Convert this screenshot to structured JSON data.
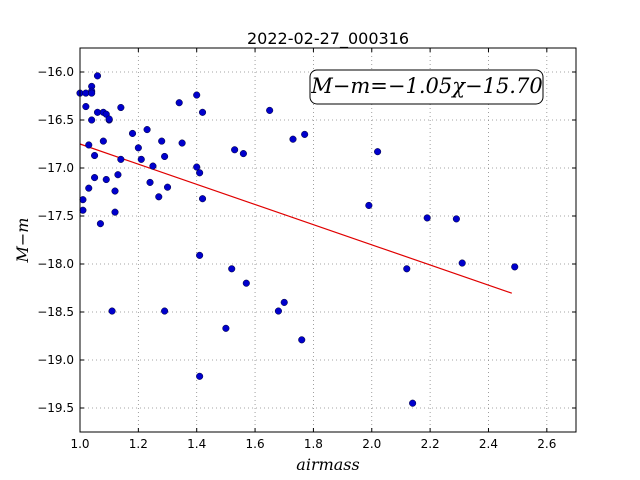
{
  "chart_data": {
    "type": "scatter",
    "title": "2022-02-27_000316",
    "xlabel": "airmass",
    "ylabel": "M−m",
    "xlim": [
      1.0,
      2.7
    ],
    "ylim": [
      -15.75,
      -19.75
    ],
    "y_inverted": true,
    "grid": true,
    "xticks": [
      "1.0",
      "1.2",
      "1.4",
      "1.6",
      "1.8",
      "2.0",
      "2.2",
      "2.4",
      "2.6"
    ],
    "yticks": [
      "−16.0",
      "−16.5",
      "−17.0",
      "−17.5",
      "−18.0",
      "−18.5",
      "−19.0",
      "−19.5"
    ],
    "annotation": "M−m=−1.05χ−15.70",
    "colors": {
      "points": "#0000cc",
      "fit": "#e00000",
      "grid": "#888888"
    },
    "fit": {
      "slope": -1.05,
      "intercept": -15.7,
      "x_range": [
        1.0,
        2.48
      ]
    },
    "points": [
      {
        "x": 1.0,
        "y": -16.22
      },
      {
        "x": 1.01,
        "y": -17.33
      },
      {
        "x": 1.01,
        "y": -17.44
      },
      {
        "x": 1.02,
        "y": -16.22
      },
      {
        "x": 1.02,
        "y": -16.36
      },
      {
        "x": 1.03,
        "y": -16.76
      },
      {
        "x": 1.03,
        "y": -17.21
      },
      {
        "x": 1.04,
        "y": -16.15
      },
      {
        "x": 1.04,
        "y": -16.2
      },
      {
        "x": 1.04,
        "y": -16.22
      },
      {
        "x": 1.04,
        "y": -16.5
      },
      {
        "x": 1.05,
        "y": -17.1
      },
      {
        "x": 1.05,
        "y": -16.87
      },
      {
        "x": 1.06,
        "y": -16.04
      },
      {
        "x": 1.06,
        "y": -16.42
      },
      {
        "x": 1.07,
        "y": -17.58
      },
      {
        "x": 1.08,
        "y": -16.42
      },
      {
        "x": 1.08,
        "y": -16.72
      },
      {
        "x": 1.09,
        "y": -16.44
      },
      {
        "x": 1.09,
        "y": -17.12
      },
      {
        "x": 1.1,
        "y": -16.5
      },
      {
        "x": 1.1,
        "y": -16.49
      },
      {
        "x": 1.11,
        "y": -18.49
      },
      {
        "x": 1.12,
        "y": -17.24
      },
      {
        "x": 1.12,
        "y": -17.46
      },
      {
        "x": 1.13,
        "y": -17.07
      },
      {
        "x": 1.14,
        "y": -16.91
      },
      {
        "x": 1.14,
        "y": -16.37
      },
      {
        "x": 1.18,
        "y": -16.64
      },
      {
        "x": 1.2,
        "y": -16.79
      },
      {
        "x": 1.21,
        "y": -16.91
      },
      {
        "x": 1.23,
        "y": -16.6
      },
      {
        "x": 1.24,
        "y": -17.15
      },
      {
        "x": 1.25,
        "y": -16.98
      },
      {
        "x": 1.27,
        "y": -17.3
      },
      {
        "x": 1.28,
        "y": -16.72
      },
      {
        "x": 1.29,
        "y": -18.49
      },
      {
        "x": 1.29,
        "y": -16.88
      },
      {
        "x": 1.3,
        "y": -17.2
      },
      {
        "x": 1.34,
        "y": -16.32
      },
      {
        "x": 1.35,
        "y": -16.74
      },
      {
        "x": 1.4,
        "y": -16.24
      },
      {
        "x": 1.4,
        "y": -16.99
      },
      {
        "x": 1.41,
        "y": -17.05
      },
      {
        "x": 1.41,
        "y": -17.91
      },
      {
        "x": 1.41,
        "y": -19.17
      },
      {
        "x": 1.42,
        "y": -17.32
      },
      {
        "x": 1.42,
        "y": -16.42
      },
      {
        "x": 1.5,
        "y": -18.67
      },
      {
        "x": 1.52,
        "y": -18.05
      },
      {
        "x": 1.53,
        "y": -16.81
      },
      {
        "x": 1.56,
        "y": -16.85
      },
      {
        "x": 1.57,
        "y": -18.2
      },
      {
        "x": 1.65,
        "y": -16.4
      },
      {
        "x": 1.68,
        "y": -18.49
      },
      {
        "x": 1.7,
        "y": -18.4
      },
      {
        "x": 1.73,
        "y": -16.7
      },
      {
        "x": 1.76,
        "y": -18.79
      },
      {
        "x": 1.77,
        "y": -16.65
      },
      {
        "x": 1.99,
        "y": -17.39
      },
      {
        "x": 2.02,
        "y": -16.83
      },
      {
        "x": 2.12,
        "y": -18.05
      },
      {
        "x": 2.14,
        "y": -19.45
      },
      {
        "x": 2.19,
        "y": -17.52
      },
      {
        "x": 2.29,
        "y": -17.53
      },
      {
        "x": 2.31,
        "y": -17.99
      },
      {
        "x": 2.49,
        "y": -18.03
      }
    ]
  }
}
